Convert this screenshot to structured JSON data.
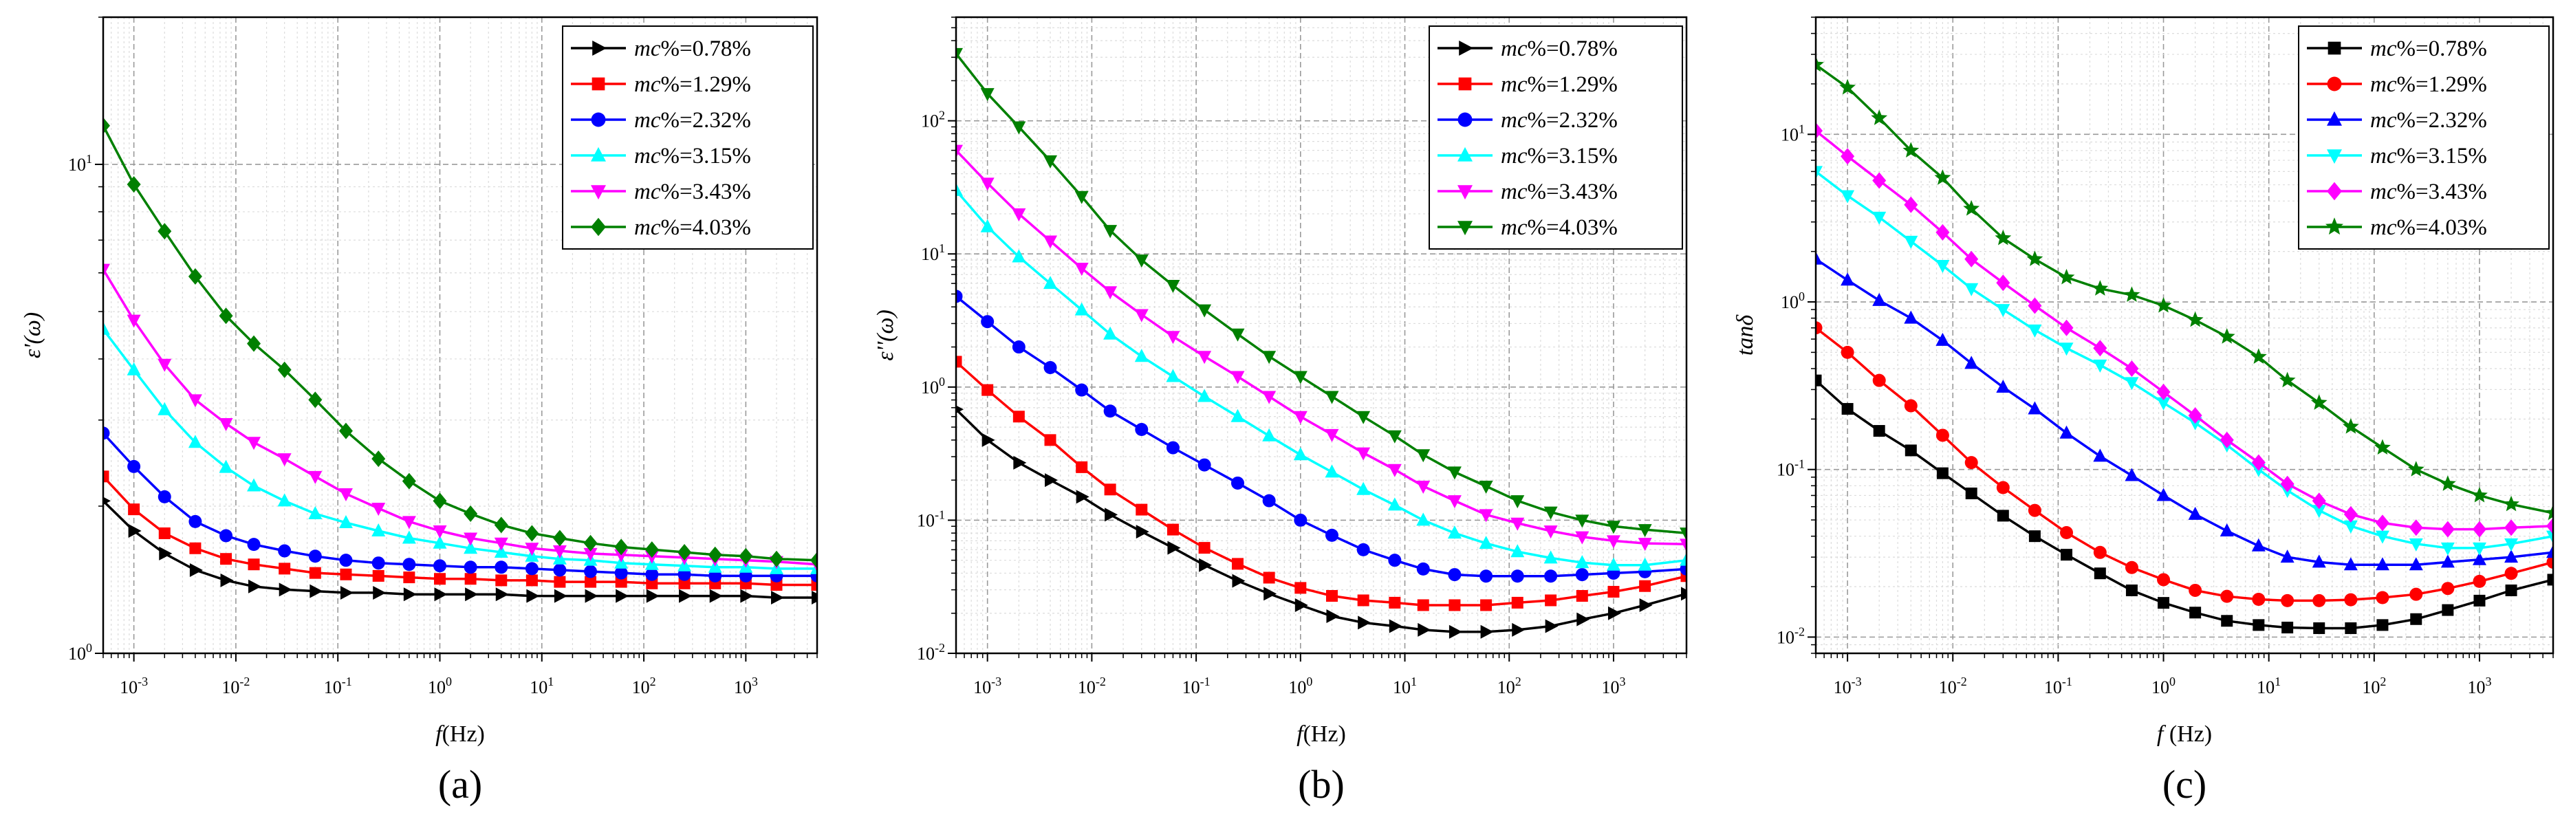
{
  "chart_data": [
    {
      "type": "line",
      "panel_label": "(a)",
      "xlabel": "f(Hz)",
      "ylabel": "ε'(ω)",
      "xscale": "log",
      "yscale": "log",
      "xlim": [
        0.0005,
        5000
      ],
      "ylim": [
        1,
        20
      ],
      "grid": true,
      "legend_position": "top-right",
      "x_ticks": [
        "10^-3",
        "10^-2",
        "10^-1",
        "10^0",
        "10^1",
        "10^2",
        "10^3"
      ],
      "y_ticks": [
        "10^0",
        "10^1"
      ],
      "x": [
        0.0005,
        0.001,
        0.002,
        0.004,
        0.008,
        0.015,
        0.03,
        0.06,
        0.12,
        0.25,
        0.5,
        1,
        2,
        4,
        8,
        15,
        30,
        60,
        120,
        250,
        500,
        1000,
        2000,
        5000
      ],
      "series": [
        {
          "name": "mc%=0.78%",
          "color": "#000000",
          "marker": "triangle-right",
          "values": [
            2.05,
            1.78,
            1.6,
            1.48,
            1.41,
            1.37,
            1.35,
            1.34,
            1.33,
            1.33,
            1.32,
            1.32,
            1.32,
            1.32,
            1.31,
            1.31,
            1.31,
            1.31,
            1.31,
            1.31,
            1.31,
            1.31,
            1.3,
            1.3
          ]
        },
        {
          "name": "mc%=1.29%",
          "color": "#ff0000",
          "marker": "square",
          "values": [
            2.3,
            1.97,
            1.76,
            1.64,
            1.56,
            1.52,
            1.49,
            1.46,
            1.45,
            1.44,
            1.43,
            1.42,
            1.42,
            1.41,
            1.41,
            1.4,
            1.4,
            1.4,
            1.39,
            1.39,
            1.39,
            1.39,
            1.38,
            1.38
          ]
        },
        {
          "name": "mc%=2.32%",
          "color": "#0000ff",
          "marker": "circle",
          "values": [
            2.82,
            2.41,
            2.09,
            1.86,
            1.74,
            1.67,
            1.62,
            1.58,
            1.55,
            1.53,
            1.52,
            1.51,
            1.5,
            1.5,
            1.49,
            1.48,
            1.47,
            1.46,
            1.45,
            1.45,
            1.44,
            1.44,
            1.44,
            1.44
          ]
        },
        {
          "name": "mc%=3.15%",
          "color": "#00ffff",
          "marker": "triangle-up",
          "values": [
            4.6,
            3.8,
            3.15,
            2.7,
            2.4,
            2.2,
            2.05,
            1.93,
            1.85,
            1.78,
            1.72,
            1.68,
            1.64,
            1.61,
            1.58,
            1.56,
            1.55,
            1.53,
            1.52,
            1.51,
            1.5,
            1.5,
            1.49,
            1.49
          ]
        },
        {
          "name": "mc%=3.43%",
          "color": "#ff00ff",
          "marker": "triangle-down",
          "values": [
            6.1,
            4.8,
            3.9,
            3.3,
            2.95,
            2.7,
            2.5,
            2.3,
            2.12,
            1.98,
            1.86,
            1.78,
            1.72,
            1.68,
            1.64,
            1.62,
            1.6,
            1.59,
            1.58,
            1.57,
            1.56,
            1.55,
            1.54,
            1.52
          ]
        },
        {
          "name": "mc%=4.03%",
          "color": "#008000",
          "marker": "diamond",
          "values": [
            12.0,
            9.1,
            7.3,
            5.9,
            4.9,
            4.3,
            3.8,
            3.3,
            2.85,
            2.5,
            2.25,
            2.05,
            1.93,
            1.83,
            1.76,
            1.72,
            1.68,
            1.65,
            1.63,
            1.61,
            1.59,
            1.58,
            1.56,
            1.55
          ]
        }
      ]
    },
    {
      "type": "line",
      "panel_label": "(b)",
      "xlabel": "f(Hz)",
      "ylabel": "ε''(ω)",
      "xscale": "log",
      "yscale": "log",
      "xlim": [
        0.0005,
        5000
      ],
      "ylim": [
        0.01,
        600
      ],
      "grid": true,
      "legend_position": "top-right",
      "x_ticks": [
        "10^-3",
        "10^-2",
        "10^-1",
        "10^0",
        "10^1",
        "10^2",
        "10^3"
      ],
      "y_ticks": [
        "10^-2",
        "10^-1",
        "10^0",
        "10^1",
        "10^2"
      ],
      "x": [
        0.0005,
        0.001,
        0.002,
        0.004,
        0.008,
        0.015,
        0.03,
        0.06,
        0.12,
        0.25,
        0.5,
        1,
        2,
        4,
        8,
        15,
        30,
        60,
        120,
        250,
        500,
        1000,
        2000,
        5000
      ],
      "series": [
        {
          "name": "mc%=0.78%",
          "color": "#000000",
          "marker": "triangle-right",
          "values": [
            0.68,
            0.4,
            0.27,
            0.2,
            0.15,
            0.11,
            0.082,
            0.062,
            0.046,
            0.035,
            0.028,
            0.023,
            0.019,
            0.017,
            0.016,
            0.015,
            0.0145,
            0.0145,
            0.015,
            0.016,
            0.018,
            0.02,
            0.023,
            0.028
          ]
        },
        {
          "name": "mc%=1.29%",
          "color": "#ff0000",
          "marker": "square",
          "values": [
            1.55,
            0.95,
            0.6,
            0.4,
            0.25,
            0.17,
            0.12,
            0.085,
            0.062,
            0.047,
            0.037,
            0.031,
            0.027,
            0.025,
            0.024,
            0.023,
            0.023,
            0.023,
            0.024,
            0.025,
            0.027,
            0.029,
            0.032,
            0.038
          ]
        },
        {
          "name": "mc%=2.32%",
          "color": "#0000ff",
          "marker": "circle",
          "values": [
            4.8,
            3.1,
            2.0,
            1.4,
            0.95,
            0.66,
            0.48,
            0.35,
            0.26,
            0.19,
            0.14,
            0.1,
            0.077,
            0.06,
            0.05,
            0.043,
            0.039,
            0.038,
            0.038,
            0.038,
            0.039,
            0.04,
            0.041,
            0.043
          ]
        },
        {
          "name": "mc%=3.15%",
          "color": "#00ffff",
          "marker": "triangle-up",
          "values": [
            30,
            16,
            9.5,
            6.0,
            3.8,
            2.5,
            1.7,
            1.2,
            0.85,
            0.6,
            0.43,
            0.31,
            0.23,
            0.17,
            0.13,
            0.1,
            0.08,
            0.067,
            0.058,
            0.052,
            0.048,
            0.046,
            0.046,
            0.05
          ]
        },
        {
          "name": "mc%=3.43%",
          "color": "#ff00ff",
          "marker": "triangle-down",
          "values": [
            60,
            34,
            20,
            12.5,
            7.8,
            5.2,
            3.5,
            2.4,
            1.7,
            1.2,
            0.85,
            0.6,
            0.44,
            0.32,
            0.24,
            0.18,
            0.14,
            0.11,
            0.095,
            0.083,
            0.075,
            0.07,
            0.067,
            0.066
          ]
        },
        {
          "name": "mc%=4.03%",
          "color": "#008000",
          "marker": "triangle-down",
          "values": [
            320,
            160,
            90,
            50,
            27,
            15,
            9.0,
            5.8,
            3.8,
            2.5,
            1.7,
            1.2,
            0.85,
            0.6,
            0.43,
            0.31,
            0.23,
            0.18,
            0.14,
            0.115,
            0.1,
            0.09,
            0.085,
            0.08
          ]
        }
      ]
    },
    {
      "type": "line",
      "panel_label": "(c)",
      "xlabel": "f (Hz)",
      "ylabel": "tanδ",
      "xscale": "log",
      "yscale": "log",
      "xlim": [
        0.0005,
        5000
      ],
      "ylim": [
        0.008,
        50
      ],
      "grid": true,
      "legend_position": "top-right",
      "x_ticks": [
        "10^-3",
        "10^-2",
        "10^-1",
        "10^0",
        "10^1",
        "10^2",
        "10^3"
      ],
      "y_ticks": [
        "10^-2",
        "10^-1",
        "10^0",
        "10^1"
      ],
      "x": [
        0.0005,
        0.001,
        0.002,
        0.004,
        0.008,
        0.015,
        0.03,
        0.06,
        0.12,
        0.25,
        0.5,
        1,
        2,
        4,
        8,
        15,
        30,
        60,
        120,
        250,
        500,
        1000,
        2000,
        5000
      ],
      "series": [
        {
          "name": "mc%=0.78%",
          "color": "#000000",
          "marker": "square",
          "values": [
            0.34,
            0.23,
            0.17,
            0.13,
            0.095,
            0.072,
            0.053,
            0.04,
            0.031,
            0.024,
            0.019,
            0.016,
            0.014,
            0.0125,
            0.0118,
            0.0114,
            0.0113,
            0.0113,
            0.0118,
            0.0128,
            0.0145,
            0.0165,
            0.019,
            0.022
          ]
        },
        {
          "name": "mc%=1.29%",
          "color": "#ff0000",
          "marker": "circle",
          "values": [
            0.7,
            0.5,
            0.34,
            0.24,
            0.16,
            0.11,
            0.078,
            0.057,
            0.042,
            0.032,
            0.026,
            0.022,
            0.019,
            0.0175,
            0.0168,
            0.0165,
            0.0165,
            0.0167,
            0.0172,
            0.018,
            0.0195,
            0.0215,
            0.024,
            0.028
          ]
        },
        {
          "name": "mc%=2.32%",
          "color": "#0000ff",
          "marker": "triangle-up",
          "values": [
            1.8,
            1.35,
            1.02,
            0.8,
            0.59,
            0.43,
            0.31,
            0.23,
            0.165,
            0.12,
            0.092,
            0.07,
            0.054,
            0.043,
            0.035,
            0.03,
            0.028,
            0.027,
            0.027,
            0.027,
            0.028,
            0.029,
            0.03,
            0.032
          ]
        },
        {
          "name": "mc%=3.15%",
          "color": "#00ffff",
          "marker": "triangle-down",
          "values": [
            6.0,
            4.3,
            3.2,
            2.3,
            1.65,
            1.2,
            0.9,
            0.68,
            0.53,
            0.42,
            0.33,
            0.25,
            0.19,
            0.14,
            0.1,
            0.075,
            0.057,
            0.046,
            0.04,
            0.036,
            0.034,
            0.034,
            0.036,
            0.04
          ]
        },
        {
          "name": "mc%=3.43%",
          "color": "#ff00ff",
          "marker": "diamond",
          "values": [
            10.5,
            7.4,
            5.3,
            3.8,
            2.6,
            1.8,
            1.3,
            0.95,
            0.7,
            0.53,
            0.4,
            0.29,
            0.21,
            0.15,
            0.11,
            0.082,
            0.065,
            0.054,
            0.048,
            0.045,
            0.044,
            0.044,
            0.045,
            0.046
          ]
        },
        {
          "name": "mc%=4.03%",
          "color": "#008000",
          "marker": "star",
          "values": [
            26,
            19,
            12.5,
            8.0,
            5.5,
            3.6,
            2.4,
            1.8,
            1.4,
            1.2,
            1.1,
            0.95,
            0.78,
            0.62,
            0.47,
            0.34,
            0.25,
            0.18,
            0.135,
            0.1,
            0.082,
            0.07,
            0.062,
            0.055
          ]
        }
      ]
    }
  ]
}
